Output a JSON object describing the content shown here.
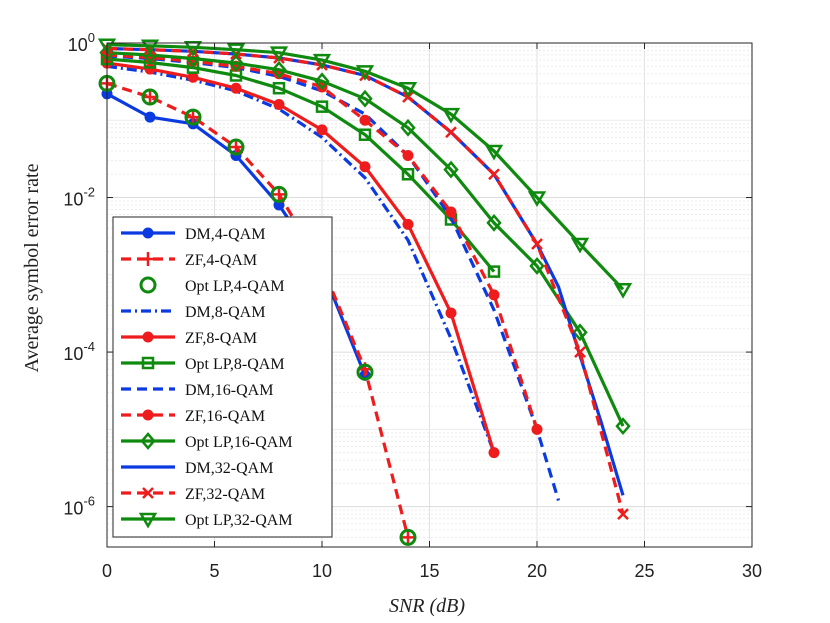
{
  "chart_data": {
    "type": "line",
    "title": "",
    "xlabel": "SNR (dB)",
    "ylabel": "Average symbol error rate",
    "xscale": "linear",
    "yscale": "log",
    "xlim": [
      0,
      30
    ],
    "ylim": [
      3e-07,
      1
    ],
    "xticks": [
      0,
      5,
      10,
      15,
      20,
      25,
      30
    ],
    "yticks": [
      {
        "value": 1,
        "label": "10",
        "exp": "0"
      },
      {
        "value": 0.01,
        "label": "10",
        "exp": "-2"
      },
      {
        "value": 0.0001,
        "label": "10",
        "exp": "-4"
      },
      {
        "value": 1e-06,
        "label": "10",
        "exp": "-6"
      }
    ],
    "grid": true,
    "legend_position": "lower-left",
    "colors": {
      "blue": "#0b3be0",
      "red": "#ee1c1c",
      "green": "#0f8a0f"
    },
    "series": [
      {
        "name": "DM,4-QAM",
        "color": "blue",
        "dash": "solid",
        "marker": "dot",
        "marker_every": 2,
        "marker_count": 3,
        "x": [
          0,
          2,
          4,
          6,
          8,
          10,
          12
        ],
        "y": [
          0.22,
          0.11,
          0.09,
          0.035,
          0.008,
          0.0012,
          5e-05
        ]
      },
      {
        "name": "ZF,4-QAM",
        "color": "red",
        "dash": "dash",
        "marker": "plus",
        "marker_every": 1,
        "marker_count": 8,
        "x": [
          0,
          2,
          4,
          6,
          8,
          10,
          12,
          14
        ],
        "y": [
          0.3,
          0.2,
          0.11,
          0.045,
          0.011,
          0.0013,
          6e-05,
          4e-07
        ]
      },
      {
        "name": "Opt LP,4-QAM",
        "color": "green",
        "dash": "none",
        "marker": "circle",
        "marker_every": 1,
        "marker_count": 8,
        "x": [
          0,
          2,
          4,
          6,
          8,
          10,
          12,
          14
        ],
        "y": [
          0.3,
          0.2,
          0.11,
          0.045,
          0.011,
          0.0013,
          5.5e-05,
          4e-07
        ]
      },
      {
        "name": "DM,8-QAM",
        "color": "blue",
        "dash": "dashdot",
        "marker": "none",
        "marker_every": 1,
        "marker_count": 0,
        "x": [
          0,
          2,
          4,
          6,
          8,
          10,
          12,
          14,
          16,
          18
        ],
        "y": [
          0.5,
          0.42,
          0.33,
          0.24,
          0.14,
          0.06,
          0.018,
          0.0028,
          0.00015,
          5e-06
        ]
      },
      {
        "name": "ZF,8-QAM",
        "color": "red",
        "dash": "solid",
        "marker": "dot",
        "marker_every": 1,
        "marker_count": 10,
        "x": [
          0,
          2,
          4,
          6,
          8,
          10,
          12,
          14,
          16,
          18
        ],
        "y": [
          0.55,
          0.46,
          0.36,
          0.26,
          0.16,
          0.075,
          0.025,
          0.0045,
          0.00032,
          5e-06
        ]
      },
      {
        "name": "Opt LP,8-QAM",
        "color": "green",
        "dash": "solid",
        "marker": "square",
        "marker_every": 1,
        "marker_count": 10,
        "x": [
          0,
          2,
          4,
          6,
          8,
          10,
          12,
          14,
          16,
          18
        ],
        "y": [
          0.62,
          0.56,
          0.48,
          0.38,
          0.26,
          0.15,
          0.065,
          0.02,
          0.0052,
          0.0011
        ]
      },
      {
        "name": "DM,16-QAM",
        "color": "blue",
        "dash": "dash",
        "marker": "none",
        "marker_every": 1,
        "marker_count": 0,
        "x": [
          0,
          2,
          4,
          6,
          8,
          10,
          12,
          14,
          16,
          18,
          20,
          21
        ],
        "y": [
          0.68,
          0.63,
          0.56,
          0.48,
          0.37,
          0.24,
          0.12,
          0.035,
          0.0055,
          0.00035,
          1e-05,
          1.2e-06
        ]
      },
      {
        "name": "ZF,16-QAM",
        "color": "red",
        "dash": "dash",
        "marker": "dot",
        "marker_every": 1,
        "marker_count": 11,
        "x": [
          0,
          2,
          4,
          6,
          8,
          10,
          12,
          14,
          16,
          18,
          20
        ],
        "y": [
          0.7,
          0.65,
          0.58,
          0.5,
          0.4,
          0.27,
          0.1,
          0.035,
          0.0065,
          0.00055,
          1e-05
        ]
      },
      {
        "name": "Opt LP,16-QAM",
        "color": "green",
        "dash": "solid",
        "marker": "diamond",
        "marker_every": 1,
        "marker_count": 13,
        "x": [
          0,
          2,
          4,
          6,
          8,
          10,
          12,
          14,
          16,
          18,
          20,
          22,
          24
        ],
        "y": [
          0.75,
          0.7,
          0.63,
          0.55,
          0.45,
          0.32,
          0.19,
          0.08,
          0.023,
          0.0047,
          0.0013,
          0.00018,
          1.1e-05
        ]
      },
      {
        "name": "DM,32-QAM",
        "color": "blue",
        "dash": "solid",
        "marker": "none",
        "marker_every": 1,
        "marker_count": 0,
        "x": [
          0,
          2,
          4,
          6,
          8,
          10,
          12,
          14,
          16,
          18,
          20,
          21,
          22,
          23,
          24
        ],
        "y": [
          0.85,
          0.82,
          0.78,
          0.72,
          0.64,
          0.52,
          0.38,
          0.2,
          0.07,
          0.02,
          0.0025,
          0.0007,
          9e-05,
          1.2e-05,
          1.4e-06
        ]
      },
      {
        "name": "ZF,32-QAM",
        "color": "red",
        "dash": "dash",
        "marker": "cross",
        "marker_every": 1,
        "marker_count": 13,
        "x": [
          0,
          2,
          4,
          6,
          8,
          10,
          12,
          14,
          16,
          18,
          20,
          22,
          24
        ],
        "y": [
          0.85,
          0.82,
          0.78,
          0.72,
          0.64,
          0.52,
          0.38,
          0.2,
          0.07,
          0.02,
          0.0025,
          0.0001,
          8e-07
        ]
      },
      {
        "name": "Opt LP,32-QAM",
        "color": "green",
        "dash": "solid",
        "marker": "triangle-down",
        "marker_every": 1,
        "marker_count": 13,
        "x": [
          0,
          2,
          4,
          6,
          8,
          10,
          12,
          14,
          16,
          18,
          20,
          22,
          24
        ],
        "y": [
          0.95,
          0.92,
          0.88,
          0.82,
          0.75,
          0.6,
          0.43,
          0.26,
          0.12,
          0.04,
          0.01,
          0.0025,
          0.00065
        ]
      }
    ]
  }
}
